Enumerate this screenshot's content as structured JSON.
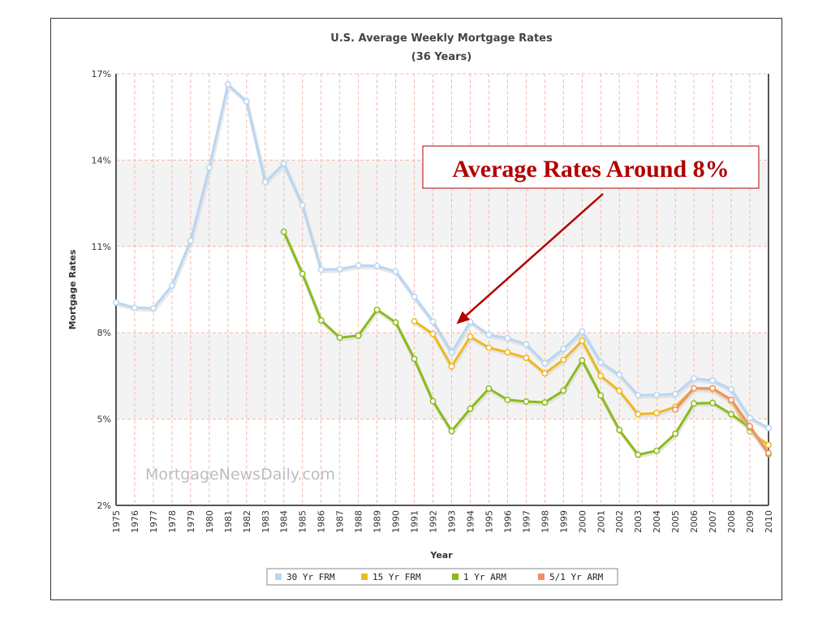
{
  "chart_data": {
    "type": "line",
    "title": "U.S. Average Weekly Mortgage Rates",
    "subtitle": "(36 Years)",
    "xlabel": "Year",
    "ylabel": "Mortgage Rates",
    "ylim": [
      2,
      17
    ],
    "yticks": [
      "2%",
      "5%",
      "8%",
      "11%",
      "14%",
      "17%"
    ],
    "yticks_values": [
      2,
      5,
      8,
      11,
      14,
      17
    ],
    "x": [
      1975,
      1976,
      1977,
      1978,
      1979,
      1980,
      1981,
      1982,
      1983,
      1984,
      1985,
      1986,
      1987,
      1988,
      1989,
      1990,
      1991,
      1992,
      1993,
      1994,
      1995,
      1996,
      1997,
      1998,
      1999,
      2000,
      2001,
      2002,
      2003,
      2004,
      2005,
      2006,
      2007,
      2008,
      2009,
      2010
    ],
    "grid": true,
    "legend_position": "bottom-center",
    "watermark": "MortgageNewsDaily.com",
    "annotation": {
      "text": "Average Rates Around 8%",
      "points_to_x": 1993,
      "points_to_y": 8.3
    },
    "series": [
      {
        "name": "30 Yr FRM",
        "color": "#b8d6f2",
        "values": [
          9.05,
          8.87,
          8.85,
          9.64,
          11.2,
          13.74,
          16.63,
          16.04,
          13.24,
          13.88,
          12.43,
          10.19,
          10.21,
          10.34,
          10.32,
          10.13,
          9.25,
          8.39,
          7.31,
          8.38,
          7.93,
          7.81,
          7.6,
          6.94,
          7.44,
          8.05,
          6.97,
          6.54,
          5.83,
          5.84,
          5.87,
          6.41,
          6.34,
          6.03,
          5.04,
          4.69
        ]
      },
      {
        "name": "15 Yr FRM",
        "color": "#f0b820",
        "values": [
          null,
          null,
          null,
          null,
          null,
          null,
          null,
          null,
          null,
          null,
          null,
          null,
          null,
          null,
          null,
          null,
          8.4,
          7.96,
          6.83,
          7.86,
          7.48,
          7.32,
          7.13,
          6.59,
          7.06,
          7.72,
          6.5,
          5.98,
          5.17,
          5.21,
          5.42,
          6.07,
          6.03,
          5.62,
          4.57,
          4.1
        ]
      },
      {
        "name": "1 Yr ARM",
        "color": "#8bbb18",
        "values": [
          null,
          null,
          null,
          null,
          null,
          null,
          null,
          null,
          null,
          11.51,
          10.05,
          8.43,
          7.83,
          7.9,
          8.8,
          8.36,
          7.09,
          5.62,
          4.58,
          5.36,
          6.06,
          5.67,
          5.61,
          5.58,
          5.99,
          7.04,
          5.82,
          4.62,
          3.76,
          3.9,
          4.49,
          5.54,
          5.56,
          5.17,
          4.7,
          3.78
        ]
      },
      {
        "name": "5/1 Yr ARM",
        "color": "#f09060",
        "values": [
          null,
          null,
          null,
          null,
          null,
          null,
          null,
          null,
          null,
          null,
          null,
          null,
          null,
          null,
          null,
          null,
          null,
          null,
          null,
          null,
          null,
          null,
          null,
          null,
          null,
          null,
          null,
          null,
          null,
          null,
          5.33,
          6.07,
          6.07,
          5.67,
          4.75,
          3.82
        ]
      }
    ]
  }
}
